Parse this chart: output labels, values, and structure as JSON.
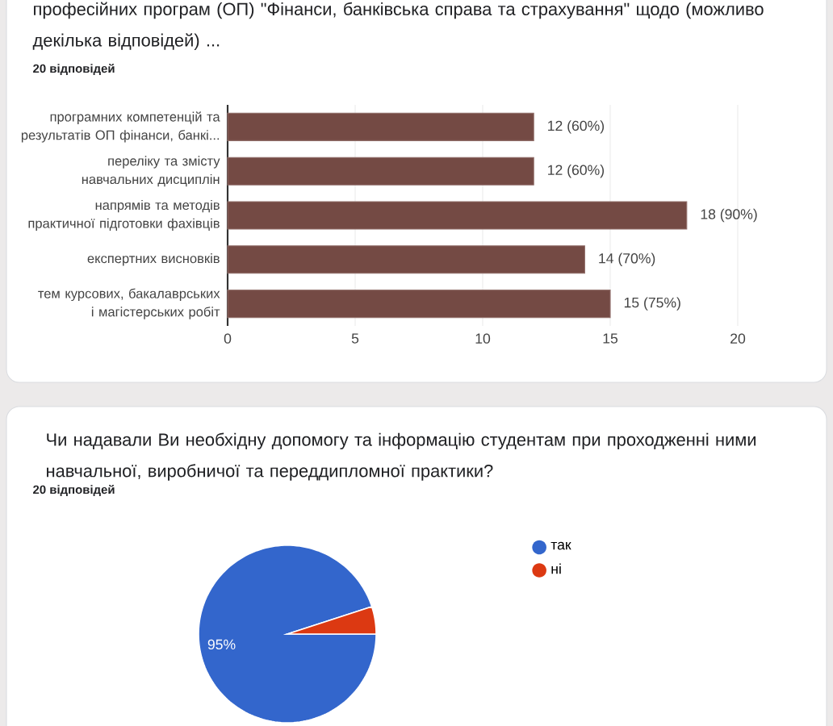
{
  "chart_data": [
    {
      "type": "bar",
      "orientation": "horizontal",
      "title": "професійних програм (ОП) \"Фінанси, банківська справа та страхування\" щодо (можливо декілька відповідей) ...",
      "subtitle": "20 відповідей",
      "categories": [
        "програмних компетенцій та результатів ОП фінанси, банкі...",
        "переліку та змісту навчальних дисциплін",
        "напрямів та методів практичної підготовки фахівців",
        "експертних висновків",
        "тем курсових, бакалаврських і магістерських робіт"
      ],
      "values": [
        12,
        12,
        18,
        14,
        15
      ],
      "value_labels": [
        "12 (60%)",
        "12 (60%)",
        "18 (90%)",
        "14 (70%)",
        "15 (75%)"
      ],
      "color": "#744a44",
      "xlim": [
        0,
        20
      ],
      "xticks": [
        0,
        5,
        10,
        15,
        20
      ],
      "grid": "x"
    },
    {
      "type": "pie",
      "title": "Чи надавали Ви необхідну допомогу та інформацію студентам при проходженні ними навчальної, виробничої та переддипломної практики?",
      "subtitle": "20 відповідей",
      "categories": [
        "так",
        "ні"
      ],
      "values": [
        95,
        5
      ],
      "colors": [
        "#3366cc",
        "#dc3912"
      ],
      "value_labels": [
        "95%",
        null
      ],
      "legend": "right"
    }
  ]
}
